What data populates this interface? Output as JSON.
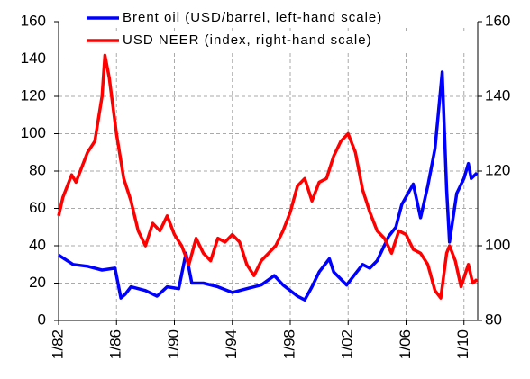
{
  "chart_data": {
    "type": "line",
    "legend": "upper center",
    "grid": true,
    "xlim": [
      1982,
      2010.95
    ],
    "xticks": [
      {
        "value": 1982,
        "label": "1/82"
      },
      {
        "value": 1986,
        "label": "1/86"
      },
      {
        "value": 1990,
        "label": "1/90"
      },
      {
        "value": 1994,
        "label": "1/94"
      },
      {
        "value": 1998,
        "label": "1/98"
      },
      {
        "value": 2002,
        "label": "1/02"
      },
      {
        "value": 2006,
        "label": "1/06"
      },
      {
        "value": 2010,
        "label": "1/10"
      }
    ],
    "ylim": [
      0,
      160
    ],
    "yticks": [
      0,
      20,
      40,
      60,
      80,
      100,
      120,
      140,
      160
    ],
    "y2lim": [
      80,
      160
    ],
    "y2ticks": [
      80,
      100,
      120,
      140,
      160
    ],
    "series": [
      {
        "name": "Brent oil (USD/barrel, left-hand scale)",
        "color": "#0000ff",
        "x": [
          1982,
          1983,
          1984,
          1985,
          1985.9,
          1986.3,
          1986.6,
          1987,
          1988,
          1988.8,
          1989.5,
          1990.3,
          1990.8,
          1991.2,
          1992,
          1993,
          1994,
          1995,
          1996,
          1996.9,
          1997.5,
          1998.5,
          1999,
          1999.5,
          2000,
          2000.7,
          2001,
          2001.9,
          2002.5,
          2003,
          2003.5,
          2004,
          2004.8,
          2005.3,
          2005.7,
          2006.5,
          2007,
          2007.5,
          2008,
          2008.5,
          2008.8,
          2009,
          2009.5,
          2010,
          2010.3,
          2010.5,
          2010.9
        ],
        "values": [
          35,
          30,
          29,
          27,
          28,
          12,
          14,
          18,
          16,
          13,
          18,
          17,
          36,
          20,
          20,
          18,
          15,
          17,
          19,
          24,
          19,
          13,
          11,
          18,
          26,
          33,
          26,
          19,
          25,
          30,
          28,
          32,
          45,
          50,
          62,
          73,
          55,
          72,
          92,
          133,
          70,
          42,
          68,
          76,
          84,
          76,
          79
        ]
      },
      {
        "name": "USD NEER (index, right-hand scale)",
        "color": "#ff0000",
        "axis": "y2",
        "x": [
          1982,
          1982.3,
          1982.9,
          1983.2,
          1984,
          1984.5,
          1985,
          1985.2,
          1985.5,
          1986,
          1986.5,
          1987,
          1987.5,
          1988,
          1988.5,
          1989,
          1989.5,
          1990,
          1990.5,
          1991,
          1991.5,
          1992,
          1992.5,
          1993,
          1993.5,
          1994,
          1994.5,
          1995,
          1995.5,
          1996,
          1996.5,
          1997,
          1997.5,
          1998,
          1998.5,
          1999,
          1999.5,
          2000,
          2000.5,
          2001,
          2001.5,
          2002,
          2002.5,
          2003,
          2003.5,
          2004,
          2004.5,
          2005,
          2005.5,
          2006,
          2006.5,
          2007,
          2007.5,
          2008,
          2008.4,
          2008.8,
          2009,
          2009.4,
          2009.8,
          2010.3,
          2010.6,
          2010.9
        ],
        "values": [
          108,
          113,
          119,
          117,
          125,
          128,
          140,
          151,
          145,
          130,
          118,
          112,
          104,
          100,
          106,
          104,
          108,
          103,
          100,
          95,
          102,
          98,
          96,
          102,
          101,
          103,
          101,
          95,
          92,
          96,
          98,
          100,
          104,
          109,
          116,
          118,
          112,
          117,
          118,
          124,
          128,
          130,
          125,
          115,
          109,
          104,
          102,
          98,
          104,
          103,
          99,
          98,
          95,
          88,
          86,
          98,
          100,
          96,
          89,
          95,
          90,
          91
        ]
      }
    ]
  }
}
